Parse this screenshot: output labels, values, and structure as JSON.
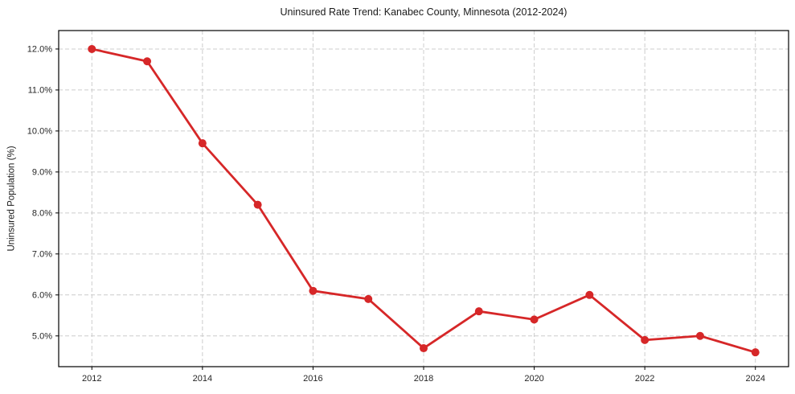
{
  "chart_data": {
    "type": "line",
    "title": "Uninsured Rate Trend: Kanabec County, Minnesota (2012-2024)",
    "xlabel": "",
    "ylabel": "Uninsured Population (%)",
    "x": [
      2012,
      2013,
      2014,
      2015,
      2016,
      2017,
      2018,
      2019,
      2020,
      2021,
      2022,
      2023,
      2024
    ],
    "values": [
      12.0,
      11.7,
      9.7,
      8.2,
      6.1,
      5.9,
      4.7,
      5.6,
      5.4,
      6.0,
      4.9,
      5.0,
      4.6
    ],
    "xticks": {
      "values": [
        2012,
        2014,
        2016,
        2018,
        2020,
        2022,
        2024
      ],
      "labels": [
        "2012",
        "2014",
        "2016",
        "2018",
        "2020",
        "2022",
        "2024"
      ]
    },
    "yticks": {
      "values": [
        5,
        6,
        7,
        8,
        9,
        10,
        11,
        12
      ],
      "labels": [
        "5.0%",
        "6.0%",
        "7.0%",
        "8.0%",
        "9.0%",
        "10.0%",
        "11.0%",
        "12.0%"
      ]
    },
    "xlim": [
      2011.4,
      2024.6
    ],
    "ylim": [
      4.25,
      12.45
    ],
    "grid": "dashed",
    "legend": "none",
    "series_color": "#d62728",
    "line_width": 2.8,
    "marker": "circle",
    "marker_size": 5
  }
}
